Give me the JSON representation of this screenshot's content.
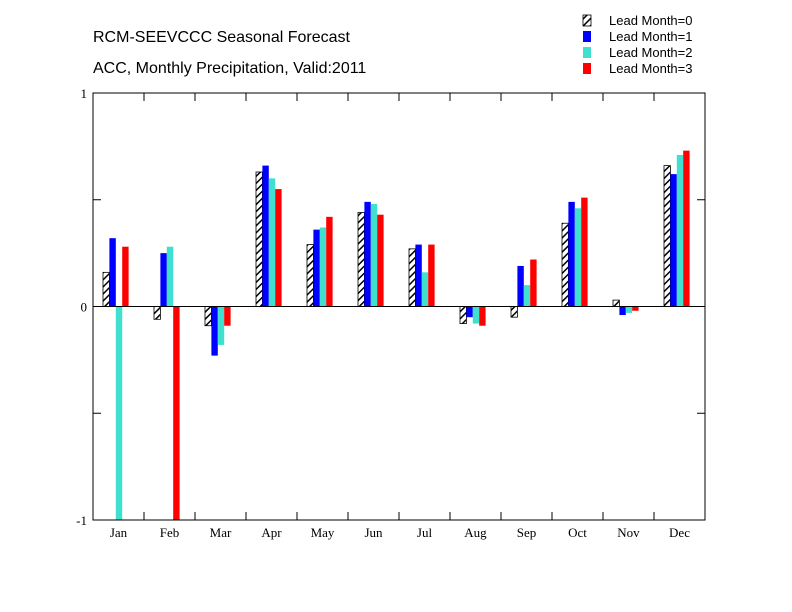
{
  "chart_data": {
    "type": "bar",
    "title": "RCM-SEEVCCC Seasonal Forecast",
    "subtitle": "ACC, Monthly Precipitation, Valid:2011",
    "xlabel": "",
    "ylabel": "",
    "ylim": [
      -1,
      1
    ],
    "yticks": [
      "-1",
      "0",
      "1"
    ],
    "grid": false,
    "legend_position": "top-right",
    "categories": [
      "Jan",
      "Feb",
      "Mar",
      "Apr",
      "May",
      "Jun",
      "Jul",
      "Aug",
      "Sep",
      "Oct",
      "Nov",
      "Dec"
    ],
    "series": [
      {
        "name": "Lead Month=0",
        "color": "#000000",
        "pattern": "hatched",
        "values": [
          0.16,
          -0.06,
          -0.09,
          0.63,
          0.29,
          0.44,
          0.27,
          -0.08,
          -0.05,
          0.39,
          0.03,
          0.66
        ]
      },
      {
        "name": "Lead Month=1",
        "color": "#0000ff",
        "pattern": "solid",
        "values": [
          0.32,
          0.25,
          -0.23,
          0.66,
          0.36,
          0.49,
          0.29,
          -0.05,
          0.19,
          0.49,
          -0.04,
          0.62
        ]
      },
      {
        "name": "Lead Month=2",
        "color": "#40e0d0",
        "pattern": "solid",
        "values": [
          -1.0,
          0.28,
          -0.18,
          0.6,
          0.37,
          0.48,
          0.16,
          -0.08,
          0.1,
          0.46,
          -0.03,
          0.71
        ]
      },
      {
        "name": "Lead Month=3",
        "color": "#ff0000",
        "pattern": "solid",
        "values": [
          0.28,
          -1.0,
          -0.09,
          0.55,
          0.42,
          0.43,
          0.29,
          -0.09,
          0.22,
          0.51,
          -0.02,
          0.73
        ]
      }
    ]
  }
}
